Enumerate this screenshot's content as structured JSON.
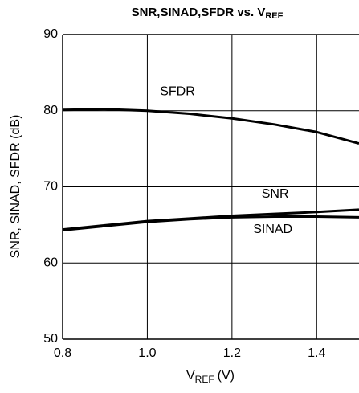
{
  "chart_data": {
    "type": "line",
    "title": "SNR,SINAD,SFDR vs. V",
    "title_sub": "REF",
    "x_label": "V",
    "x_label_sub": "REF",
    "x_label_unit": "(V)",
    "y_label": "SNR, SINAD, SFDR (dB)",
    "x": [
      0.8,
      0.9,
      1.0,
      1.1,
      1.2,
      1.3,
      1.4,
      1.5
    ],
    "series": [
      {
        "name": "SFDR",
        "color": "#000000",
        "values": [
          80.1,
          80.2,
          80.0,
          79.6,
          79.0,
          78.2,
          77.2,
          75.7
        ]
      },
      {
        "name": "SNR",
        "color": "#000000",
        "values": [
          64.4,
          64.95,
          65.5,
          65.85,
          66.2,
          66.45,
          66.7,
          67.0
        ]
      },
      {
        "name": "SINAD",
        "color": "#000000",
        "values": [
          64.3,
          64.85,
          65.4,
          65.75,
          66.0,
          66.1,
          66.1,
          66.0
        ]
      }
    ],
    "xlim": [
      0.8,
      1.5
    ],
    "xticks": [
      {
        "value": 0.8,
        "label": "0.8"
      },
      {
        "value": 1.0,
        "label": "1.0"
      },
      {
        "value": 1.2,
        "label": "1.2"
      },
      {
        "value": 1.4,
        "label": "1.4"
      }
    ],
    "ylim": [
      50,
      90
    ],
    "yticks": [
      50,
      60,
      70,
      80,
      90
    ],
    "grid": true
  }
}
